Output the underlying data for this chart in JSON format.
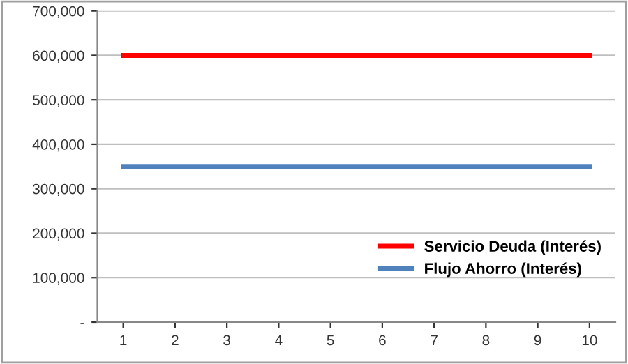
{
  "chart_data": {
    "type": "line",
    "categories": [
      "1",
      "2",
      "3",
      "4",
      "5",
      "6",
      "7",
      "8",
      "9",
      "10"
    ],
    "series": [
      {
        "name": "Servicio Deuda (Interés)",
        "color": "#ff0000",
        "values": [
          600000,
          600000,
          600000,
          600000,
          600000,
          600000,
          600000,
          600000,
          600000,
          600000
        ]
      },
      {
        "name": "Flujo Ahorro (Interés)",
        "color": "#4f81bd",
        "values": [
          350000,
          350000,
          350000,
          350000,
          350000,
          350000,
          350000,
          350000,
          350000,
          350000
        ]
      }
    ],
    "ylim": [
      0,
      700000
    ],
    "yticks": [
      {
        "value": 0,
        "label": "-"
      },
      {
        "value": 100000,
        "label": "100,000"
      },
      {
        "value": 200000,
        "label": "200,000"
      },
      {
        "value": 300000,
        "label": "300,000"
      },
      {
        "value": 400000,
        "label": "400,000"
      },
      {
        "value": 500000,
        "label": "500,000"
      },
      {
        "value": 600000,
        "label": "600,000"
      },
      {
        "value": 700000,
        "label": "700,000"
      }
    ],
    "grid": "y",
    "legend": "bottom right",
    "marker": "none",
    "line_style": "solid"
  }
}
